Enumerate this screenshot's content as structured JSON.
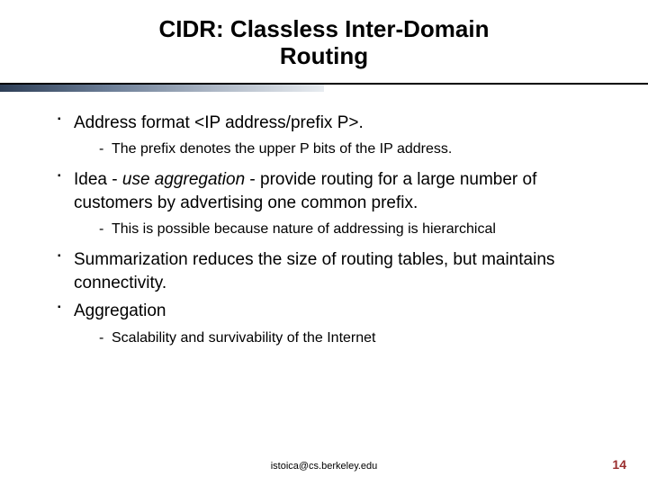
{
  "title_fontsize": 26,
  "body_fontsize": 19,
  "sub_fontsize": 16,
  "footer_fontsize": 11,
  "pagenum_fontsize": 14,
  "pagenum_color": "#9a2e2e",
  "title_line1": "CIDR: Classless Inter-Domain",
  "title_line2": "Routing",
  "bullets": [
    {
      "text": "Address format <IP address/prefix P>.",
      "subs": [
        "The prefix denotes the upper P bits of the IP address."
      ]
    },
    {
      "html_parts": {
        "pre": "Idea - ",
        "em": "use aggregation",
        "post": " - provide routing for a large number of customers by advertising one common prefix."
      },
      "subs": [
        "This is possible because nature of addressing is hierarchical"
      ]
    },
    {
      "text": "Summarization reduces the size of routing tables, but maintains connectivity.",
      "subs": []
    },
    {
      "text": "Aggregation",
      "subs": [
        "Scalability and survivability of the Internet"
      ]
    }
  ],
  "footer_email": "istoica@cs.berkeley.edu",
  "page_number": "14"
}
